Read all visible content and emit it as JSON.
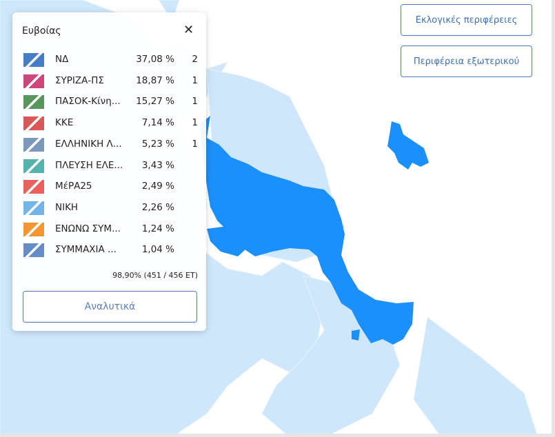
{
  "panel": {
    "title": "Ευβοίας",
    "rows": [
      {
        "party": "ΝΔ",
        "percent": "37,08 %",
        "seats": 2
      },
      {
        "party": "ΣΥΡΙΖΑ-ΠΣ",
        "percent": "18,87 %",
        "seats": 1
      },
      {
        "party": "ΠΑΣΟΚ-Κίνη...",
        "percent": "15,27 %",
        "seats": 1
      },
      {
        "party": "ΚΚΕ",
        "percent": "7,14 %",
        "seats": 1
      },
      {
        "party": "ΕΛΛΗΝΙΚΗ Λ...",
        "percent": "5,23 %",
        "seats": 1
      },
      {
        "party": "ΠΛΕΥΣΗ ΕΛΕ...",
        "percent": "3,43 %"
      },
      {
        "party": "ΜέΡΑ25",
        "percent": "2,49 %"
      },
      {
        "party": "ΝΙΚΗ",
        "percent": "2,26 %"
      },
      {
        "party": "ΕΝΩΝΩ ΣΥΜ...",
        "percent": "1,24 %"
      },
      {
        "party": "ΣΥΜΜΑΧΙΑ ...",
        "percent": "1,04 %"
      }
    ],
    "counted": "98,90% (451 / 456 ET)",
    "button": "Αναλυτικά"
  },
  "buttons": [
    "Εκλογικές περιφέρειες",
    "Περιφέρεια εξωτερικού"
  ]
}
